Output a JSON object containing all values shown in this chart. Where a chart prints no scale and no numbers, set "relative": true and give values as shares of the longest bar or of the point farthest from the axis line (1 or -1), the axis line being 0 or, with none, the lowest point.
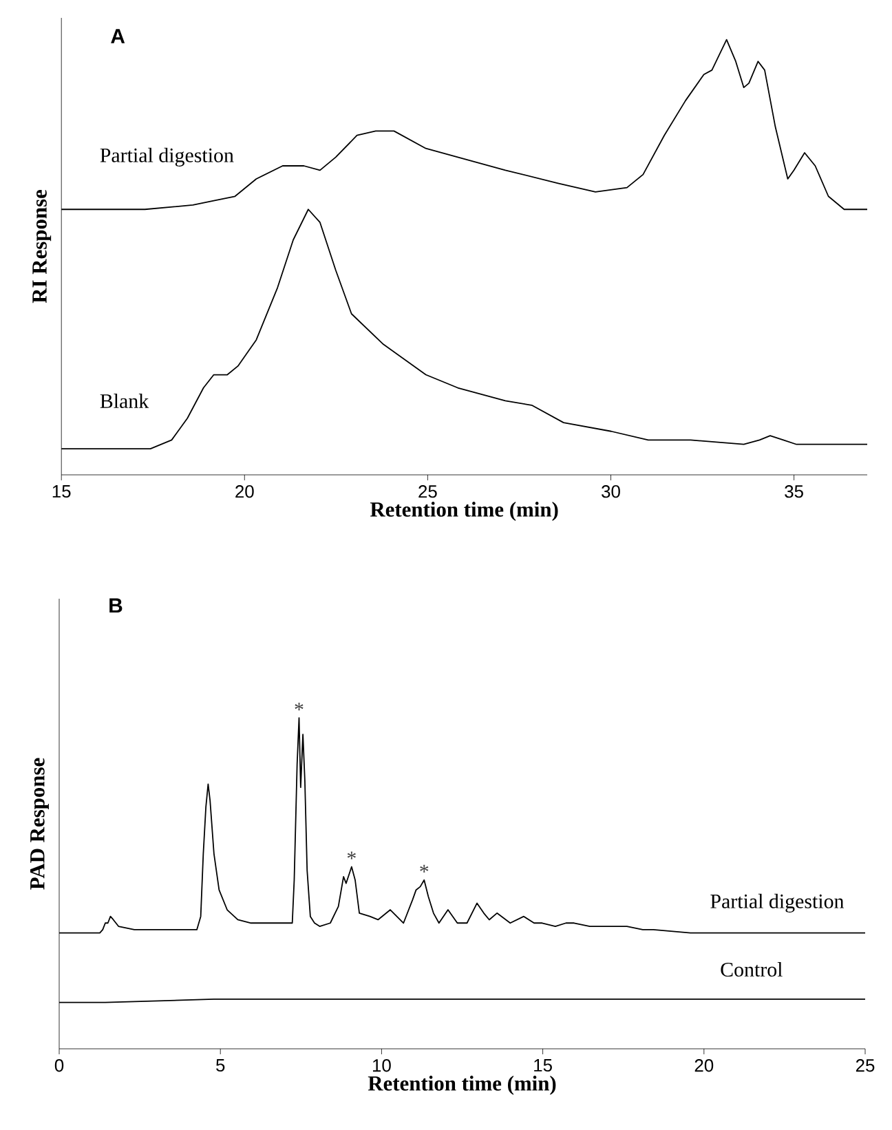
{
  "chart_data": [
    {
      "type": "line",
      "title": "A",
      "xlabel": "Retention time (min)",
      "ylabel": "RI Response",
      "relative": true,
      "tick_labels": "x",
      "xlim": [
        15,
        37
      ],
      "xticks": [
        15,
        20,
        25,
        30,
        35
      ],
      "series": [
        {
          "name": "Partial digestion",
          "color": "#000000",
          "x": [
            15.0,
            17.28,
            18.59,
            19.16,
            19.74,
            20.32,
            21.04,
            21.62,
            22.06,
            22.49,
            23.07,
            23.58,
            24.08,
            24.95,
            25.82,
            27.12,
            28.56,
            29.58,
            30.44,
            30.88,
            31.46,
            32.04,
            32.54,
            32.76,
            33.16,
            33.41,
            33.63,
            33.77,
            34.02,
            34.2,
            34.49,
            34.83,
            35.0,
            35.29,
            35.58,
            35.94,
            36.37,
            37.0
          ],
          "values": [
            0.61,
            0.61,
            0.62,
            0.63,
            0.64,
            0.68,
            0.71,
            0.71,
            0.7,
            0.73,
            0.78,
            0.79,
            0.79,
            0.75,
            0.73,
            0.7,
            0.67,
            0.65,
            0.66,
            0.69,
            0.78,
            0.86,
            0.92,
            0.93,
            1.0,
            0.95,
            0.89,
            0.9,
            0.95,
            0.93,
            0.8,
            0.68,
            0.7,
            0.74,
            0.71,
            0.64,
            0.61,
            0.61
          ]
        },
        {
          "name": "Blank",
          "color": "#000000",
          "x": [
            15.0,
            17.43,
            18.01,
            18.44,
            18.88,
            19.16,
            19.53,
            19.82,
            20.32,
            20.9,
            21.33,
            21.74,
            22.06,
            22.49,
            22.92,
            23.79,
            24.95,
            25.82,
            27.12,
            27.84,
            28.71,
            30.01,
            31.02,
            32.18,
            33.63,
            34.06,
            34.35,
            34.71,
            35.07,
            35.8,
            37.0
          ],
          "values": [
            0.06,
            0.06,
            0.08,
            0.13,
            0.2,
            0.23,
            0.23,
            0.25,
            0.31,
            0.43,
            0.54,
            0.61,
            0.58,
            0.47,
            0.37,
            0.3,
            0.23,
            0.2,
            0.17,
            0.16,
            0.12,
            0.1,
            0.08,
            0.08,
            0.07,
            0.08,
            0.09,
            0.08,
            0.07,
            0.07,
            0.07
          ]
        }
      ]
    },
    {
      "type": "line",
      "title": "B",
      "xlabel": "Retention time (min)",
      "ylabel": "PAD Response",
      "relative": true,
      "tick_labels": "x",
      "xlim": [
        0,
        25
      ],
      "xticks": [
        0,
        5,
        10,
        15,
        20,
        25
      ],
      "annotations": [
        {
          "text": "*",
          "x": 7.44,
          "y": 1.0
        },
        {
          "text": "*",
          "x": 9.07,
          "y": 0.55
        },
        {
          "text": "*",
          "x": 11.32,
          "y": 0.51
        }
      ],
      "series": [
        {
          "name": "Partial digestion",
          "color": "#000000",
          "x": [
            0,
            1.26,
            1.35,
            1.43,
            1.51,
            1.59,
            1.68,
            1.84,
            2.33,
            3.15,
            4.27,
            4.39,
            4.47,
            4.55,
            4.62,
            4.68,
            4.8,
            4.96,
            5.21,
            5.54,
            5.95,
            7.1,
            7.23,
            7.29,
            7.38,
            7.44,
            7.49,
            7.56,
            7.62,
            7.69,
            7.79,
            7.92,
            8.08,
            8.41,
            8.66,
            8.82,
            8.9,
            9.07,
            9.18,
            9.31,
            9.64,
            9.89,
            10.27,
            10.68,
            10.96,
            11.07,
            11.2,
            11.32,
            11.45,
            11.61,
            11.78,
            12.06,
            12.35,
            12.65,
            12.96,
            13.17,
            13.34,
            13.58,
            13.99,
            14.41,
            14.73,
            14.98,
            15.39,
            15.72,
            15.97,
            16.46,
            16.79,
            17.12,
            17.61,
            18.1,
            18.43,
            19.58,
            22.04,
            25.0
          ],
          "values": [
            0.35,
            0.35,
            0.36,
            0.38,
            0.38,
            0.4,
            0.39,
            0.37,
            0.36,
            0.36,
            0.36,
            0.4,
            0.59,
            0.73,
            0.8,
            0.75,
            0.59,
            0.48,
            0.42,
            0.39,
            0.38,
            0.38,
            0.38,
            0.51,
            0.86,
            1.0,
            0.79,
            0.95,
            0.81,
            0.54,
            0.4,
            0.38,
            0.37,
            0.38,
            0.43,
            0.52,
            0.5,
            0.55,
            0.51,
            0.41,
            0.4,
            0.39,
            0.42,
            0.38,
            0.45,
            0.48,
            0.49,
            0.51,
            0.46,
            0.41,
            0.38,
            0.42,
            0.38,
            0.38,
            0.44,
            0.41,
            0.39,
            0.41,
            0.38,
            0.4,
            0.38,
            0.38,
            0.37,
            0.38,
            0.38,
            0.37,
            0.37,
            0.37,
            0.37,
            0.36,
            0.36,
            0.35,
            0.35,
            0.35
          ]
        },
        {
          "name": "Control",
          "color": "#000000",
          "x": [
            0,
            1.18,
            1.31,
            1.43,
            4.8,
            7.1,
            7.59,
            7.75,
            8.41,
            11.37,
            16.29,
            25.0
          ],
          "values": [
            0.14,
            0.14,
            0.14,
            0.14,
            0.15,
            0.15,
            0.15,
            0.15,
            0.15,
            0.15,
            0.15,
            0.15
          ]
        }
      ]
    }
  ]
}
